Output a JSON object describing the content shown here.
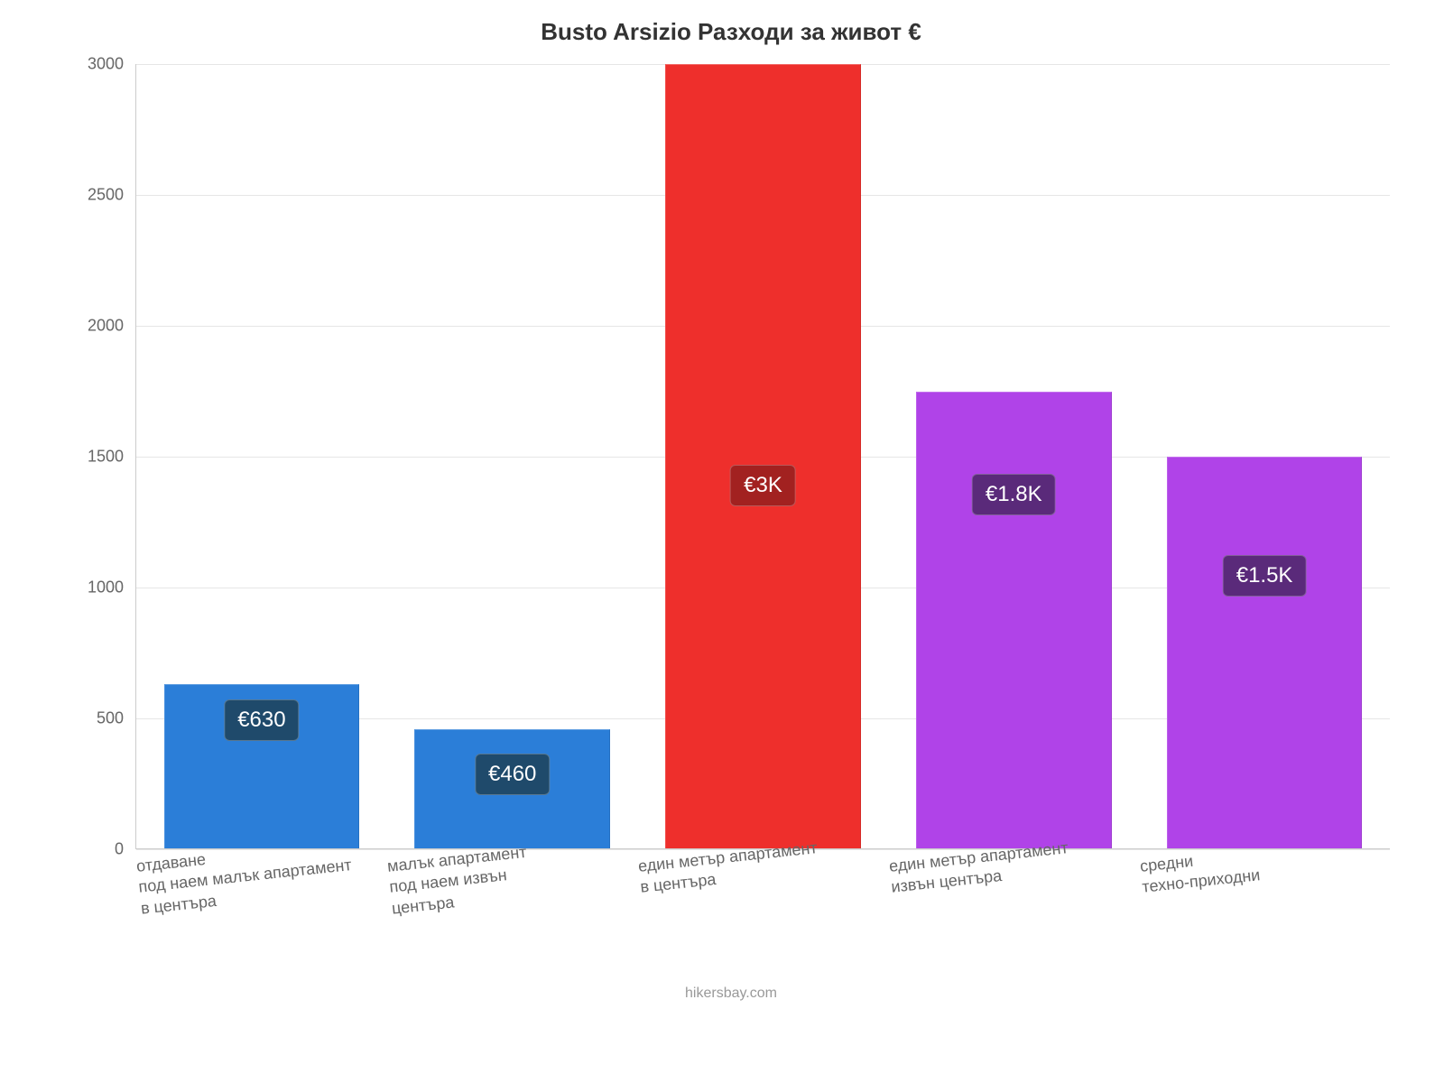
{
  "chart": {
    "type": "bar",
    "title": "Busto Arsizio Разходи за живот €",
    "title_fontsize": 26,
    "title_color": "#333333",
    "background_color": "#ffffff",
    "grid_color": "#e6e6e6",
    "axis_color": "#cccccc",
    "tick_color": "#666666",
    "tick_fontsize": 18,
    "label_fontsize": 18,
    "label_color": "#666666",
    "ylim_min": 0,
    "ylim_max": 3000,
    "ytick_step": 500,
    "yticks": [
      0,
      500,
      1000,
      1500,
      2000,
      2500,
      3000
    ],
    "bar_width_pct": 78,
    "badge_fontsize": 24,
    "footer": "hikersbay.com",
    "footer_color": "#999999",
    "footer_fontsize": 16,
    "categories": [
      "отдаване\nпод наем малък апартамент\nв центъра",
      "малък апартамент\nпод наем извън\nцентъра",
      "един метър апартамент\nв центъра",
      "един метър апартамент\nизвън центъра",
      "средни\nтехно-приходни"
    ],
    "values": [
      630,
      460,
      3000,
      1750,
      1500
    ],
    "value_labels": [
      "€630",
      "€460",
      "€3K",
      "€1.8K",
      "€1.5K"
    ],
    "bar_colors": [
      "#2b7ed8",
      "#2b7ed8",
      "#ee2f2c",
      "#b043e8",
      "#b043e8"
    ],
    "badge_colors": [
      "#1f4a6b",
      "#1f4a6b",
      "#a22120",
      "#5a2a7a",
      "#5a2a7a"
    ],
    "badge_offsets": [
      120,
      60,
      380,
      370,
      280
    ]
  }
}
